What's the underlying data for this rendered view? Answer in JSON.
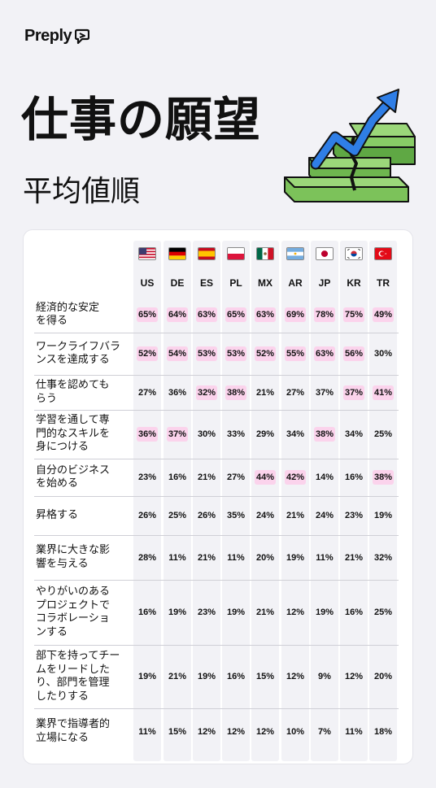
{
  "brand": {
    "name": "Preply"
  },
  "title": "仕事の願望",
  "subtitle": "平均値順",
  "colors": {
    "background": "#f2f2f6",
    "highlight": "#fbd3ec",
    "column": "#f2f2f6",
    "arrow": "#2f7ee6",
    "stairs": "#7cc25a"
  },
  "chart_data": {
    "type": "table",
    "columns": [
      "US",
      "DE",
      "ES",
      "PL",
      "MX",
      "AR",
      "JP",
      "KR",
      "TR"
    ],
    "flags": [
      "us-flag-icon",
      "de-flag-icon",
      "es-flag-icon",
      "pl-flag-icon",
      "mx-flag-icon",
      "ar-flag-icon",
      "jp-flag-icon",
      "kr-flag-icon",
      "tr-flag-icon"
    ],
    "rows": [
      {
        "label": "経済的な安定\nを得る",
        "values": [
          "65%",
          "64%",
          "63%",
          "65%",
          "63%",
          "69%",
          "78%",
          "75%",
          "49%"
        ],
        "highlight": [
          1,
          1,
          1,
          1,
          1,
          1,
          1,
          1,
          1
        ]
      },
      {
        "label": "ワークライフバラ\nンスを達成する",
        "values": [
          "52%",
          "54%",
          "53%",
          "53%",
          "52%",
          "55%",
          "63%",
          "56%",
          "30%"
        ],
        "highlight": [
          1,
          1,
          1,
          1,
          1,
          1,
          1,
          1,
          0
        ]
      },
      {
        "label": "仕事を認めても\nらう",
        "values": [
          "27%",
          "36%",
          "32%",
          "38%",
          "21%",
          "27%",
          "37%",
          "37%",
          "41%"
        ],
        "highlight": [
          0,
          0,
          1,
          1,
          0,
          0,
          0,
          1,
          1
        ]
      },
      {
        "label": "学習を通して専\n門的なスキルを\n身につける",
        "values": [
          "36%",
          "37%",
          "30%",
          "33%",
          "29%",
          "34%",
          "38%",
          "34%",
          "25%"
        ],
        "highlight": [
          1,
          1,
          0,
          0,
          0,
          0,
          1,
          0,
          0
        ]
      },
      {
        "label": "自分のビジネス\nを始める",
        "values": [
          "23%",
          "16%",
          "21%",
          "27%",
          "44%",
          "42%",
          "14%",
          "16%",
          "38%"
        ],
        "highlight": [
          0,
          0,
          0,
          0,
          1,
          1,
          0,
          0,
          1
        ]
      },
      {
        "label": "昇格する",
        "values": [
          "26%",
          "25%",
          "26%",
          "35%",
          "24%",
          "21%",
          "24%",
          "23%",
          "19%"
        ],
        "highlight": [
          0,
          0,
          0,
          0,
          0,
          0,
          0,
          0,
          0
        ]
      },
      {
        "label": "業界に大きな影\n響を与える",
        "values": [
          "28%",
          "11%",
          "21%",
          "11%",
          "20%",
          "19%",
          "11%",
          "21%",
          "32%"
        ],
        "highlight": [
          0,
          0,
          0,
          0,
          0,
          0,
          0,
          0,
          0
        ]
      },
      {
        "label": "やりがいのある\nプロジェクトで\nコラボレーショ\nンする",
        "values": [
          "16%",
          "19%",
          "23%",
          "19%",
          "21%",
          "12%",
          "19%",
          "16%",
          "25%"
        ],
        "highlight": [
          0,
          0,
          0,
          0,
          0,
          0,
          0,
          0,
          0
        ]
      },
      {
        "label": "部下を持ってチー\nムをリードした\nり、部門を管理\nしたりする",
        "values": [
          "19%",
          "21%",
          "19%",
          "16%",
          "15%",
          "12%",
          "9%",
          "12%",
          "20%"
        ],
        "highlight": [
          0,
          0,
          0,
          0,
          0,
          0,
          0,
          0,
          0
        ]
      },
      {
        "label": "業界で指導者的\n立場になる",
        "values": [
          "11%",
          "15%",
          "12%",
          "12%",
          "12%",
          "10%",
          "7%",
          "11%",
          "18%"
        ],
        "highlight": [
          0,
          0,
          0,
          0,
          0,
          0,
          0,
          0,
          0
        ]
      }
    ]
  }
}
